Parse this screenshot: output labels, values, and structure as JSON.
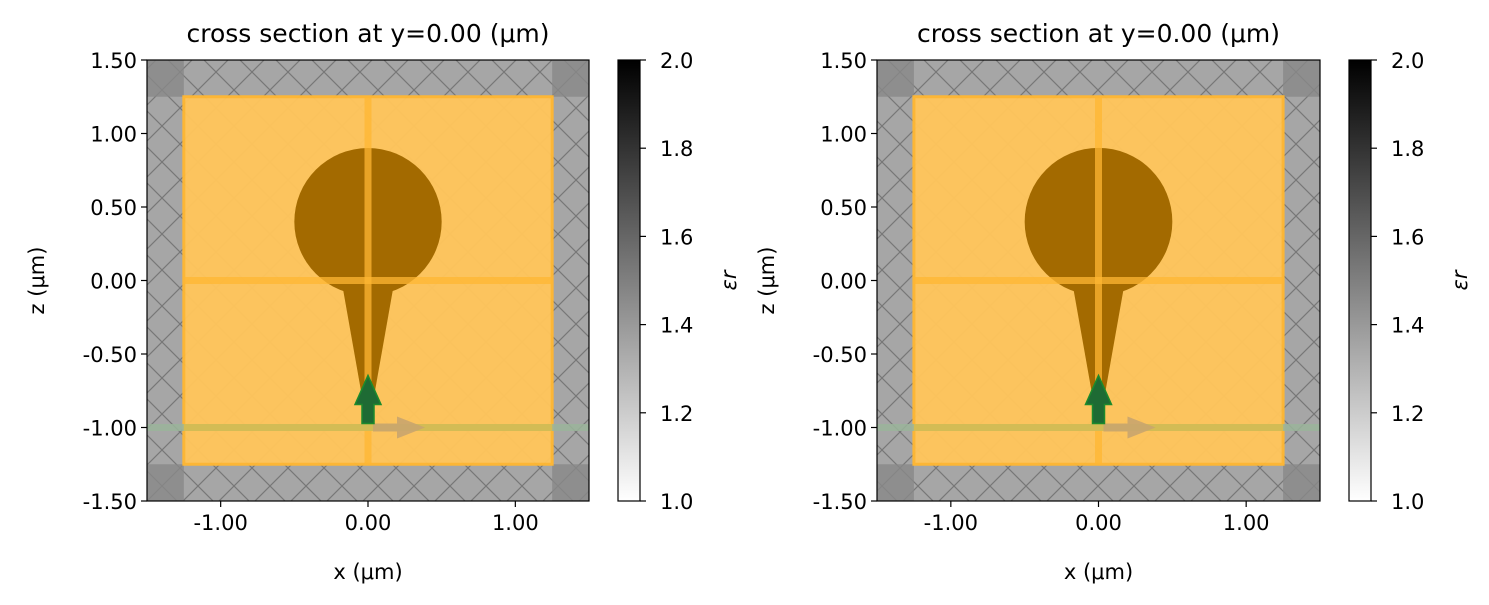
{
  "chart_data": [
    {
      "type": "heatmap",
      "title": "cross section at y=0.00 (μm)",
      "xlabel": "x (μm)",
      "ylabel": "z (μm)",
      "xlim": [
        -1.5,
        1.5
      ],
      "ylim": [
        -1.5,
        1.5
      ],
      "xticks": [
        -1.0,
        0.0,
        1.0
      ],
      "xtick_labels": [
        "-1.00",
        "0.00",
        "1.00"
      ],
      "yticks": [
        1.5,
        1.0,
        0.5,
        0.0,
        -0.5,
        -1.0,
        -1.5
      ],
      "ytick_labels": [
        "1.50",
        "1.00",
        "0.50",
        "0.00",
        "-0.50",
        "-1.00",
        "-1.50"
      ],
      "colorbar": {
        "label": "εr",
        "range": [
          1.0,
          2.0
        ],
        "ticks": [
          1.0,
          1.2,
          1.4,
          1.6,
          1.8,
          2.0
        ],
        "tick_labels": [
          "1.0",
          "1.2",
          "1.4",
          "1.6",
          "1.8",
          "2.0"
        ]
      },
      "pml_thickness": 0.25,
      "monitor_box": [
        -1.25,
        1.25,
        -1.25,
        1.25
      ],
      "monitor_lines": {
        "x": 0.0,
        "z": 0.0
      },
      "sphere": {
        "center": [
          0.0,
          0.4
        ],
        "radius": 0.5
      },
      "taper": {
        "top_z": 0.0,
        "top_half_width": 0.18,
        "bottom_z": -0.85,
        "bottom_half_width": 0.03
      },
      "source": {
        "z": -1.0,
        "direction_arrow": "+x",
        "polarization_arrow": "+z"
      },
      "grid": false,
      "colors": {
        "background": "#a6a6a6",
        "pml_corner": "#888888",
        "monitor_fill": "#ffc55c",
        "monitor_edge": "#ffb733",
        "structure": "#a36a00",
        "source_line": "#d6bd52",
        "source_line_outer": "#9bb59b",
        "direction_arrow": "#c9a56e",
        "polarization_arrow": "#1e6b34",
        "polarization_edge": "#1c8a2c"
      }
    },
    {
      "type": "heatmap",
      "title": "cross section at y=0.00 (μm)",
      "xlabel": "x (μm)",
      "ylabel": "z (μm)",
      "xlim": [
        -1.5,
        1.5
      ],
      "ylim": [
        -1.5,
        1.5
      ],
      "xticks": [
        -1.0,
        0.0,
        1.0
      ],
      "xtick_labels": [
        "-1.00",
        "0.00",
        "1.00"
      ],
      "yticks": [
        1.5,
        1.0,
        0.5,
        0.0,
        -0.5,
        -1.0,
        -1.5
      ],
      "ytick_labels": [
        "1.50",
        "1.00",
        "0.50",
        "0.00",
        "-0.50",
        "-1.00",
        "-1.50"
      ],
      "colorbar": {
        "label": "εr",
        "range": [
          1.0,
          2.0
        ],
        "ticks": [
          1.0,
          1.2,
          1.4,
          1.6,
          1.8,
          2.0
        ],
        "tick_labels": [
          "1.0",
          "1.2",
          "1.4",
          "1.6",
          "1.8",
          "2.0"
        ]
      },
      "pml_thickness": 0.25,
      "monitor_box": [
        -1.25,
        1.25,
        -1.25,
        1.25
      ],
      "monitor_lines": {
        "x": 0.0,
        "z": 0.0
      },
      "sphere": {
        "center": [
          0.0,
          0.4
        ],
        "radius": 0.5
      },
      "taper": {
        "top_z": 0.0,
        "top_half_width": 0.18,
        "bottom_z": -0.85,
        "bottom_half_width": 0.03
      },
      "source": {
        "z": -1.0,
        "direction_arrow": "+x",
        "polarization_arrow": "+z"
      },
      "grid": false,
      "colors": {
        "background": "#a6a6a6",
        "pml_corner": "#888888",
        "monitor_fill": "#ffc55c",
        "monitor_edge": "#ffb733",
        "structure": "#a36a00",
        "source_line": "#d6bd52",
        "source_line_outer": "#9bb59b",
        "direction_arrow": "#c9a56e",
        "polarization_arrow": "#1e6b34",
        "polarization_edge": "#1c8a2c"
      }
    }
  ]
}
